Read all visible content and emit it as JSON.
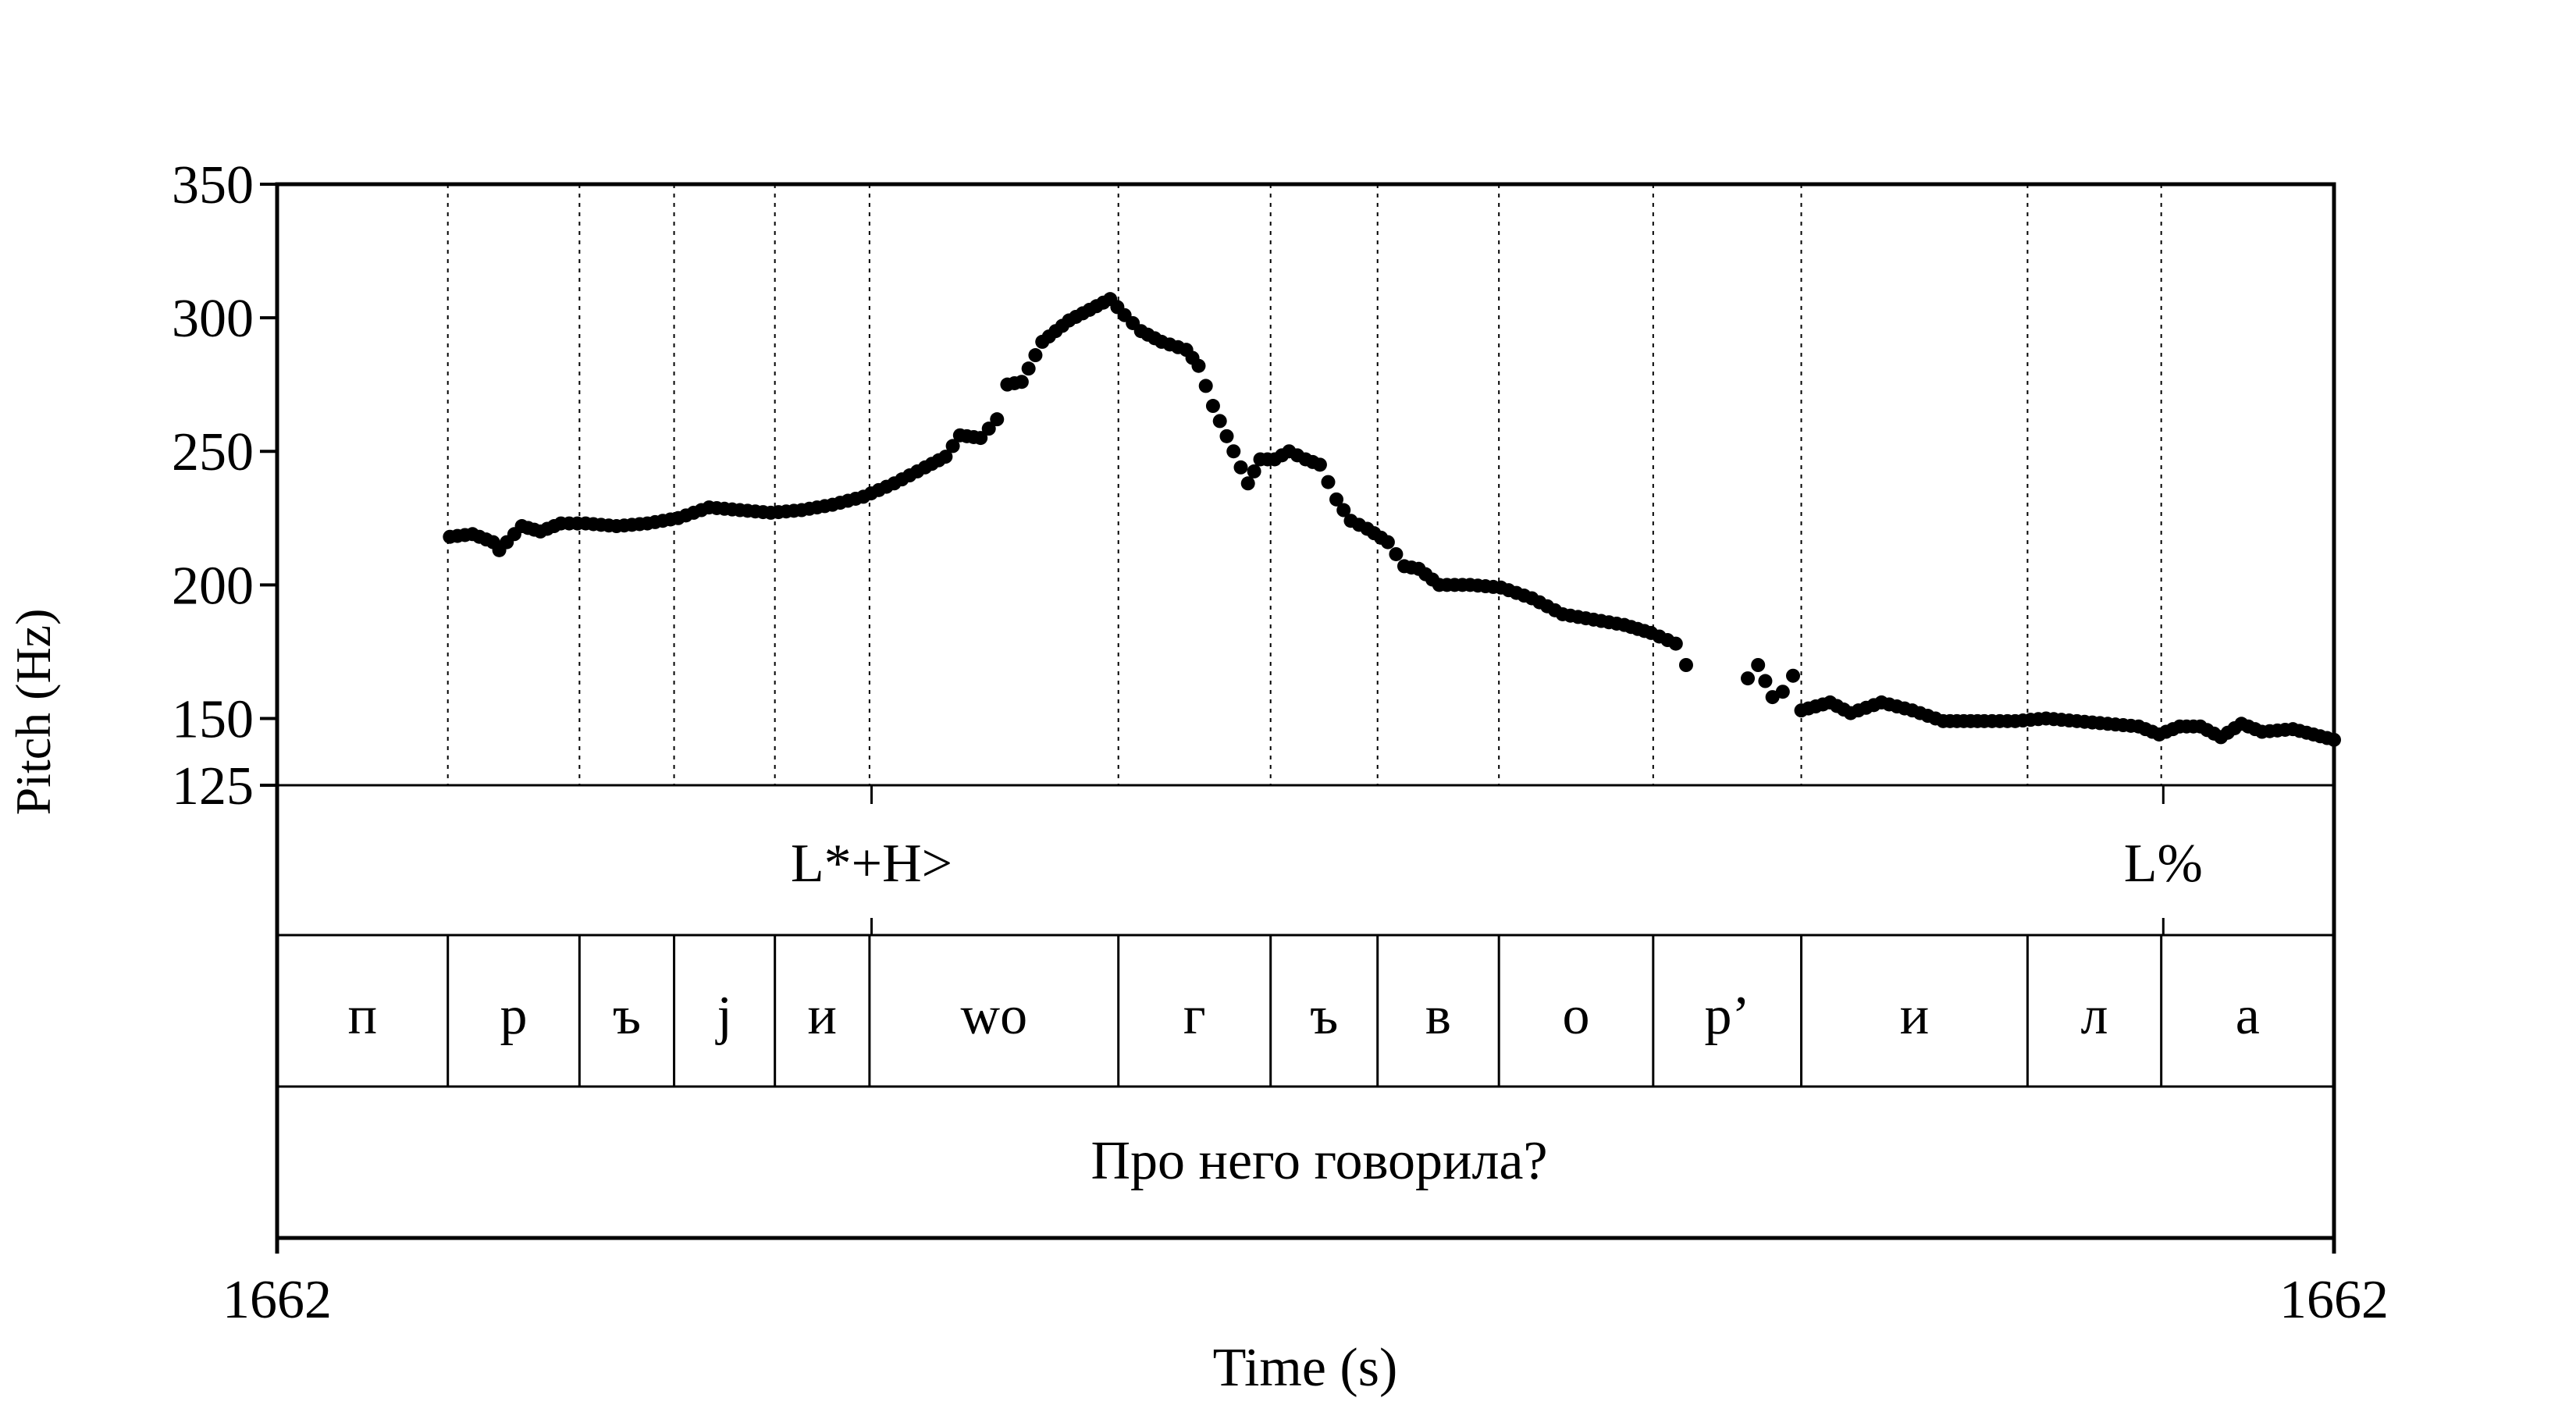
{
  "chart_data": {
    "type": "scatter",
    "title": "",
    "ylabel": "Pitch (Hz)",
    "xlabel": "Time (s)",
    "ylim": [
      125,
      350
    ],
    "y_ticks": [
      350,
      300,
      250,
      200,
      150,
      125
    ],
    "x_ticks": {
      "start": "1662",
      "end": "1662"
    },
    "grid": "vertical dotted lines at segment boundaries",
    "tiers": {
      "tones": [
        {
          "label": "L*+H>",
          "x": 0.289
        },
        {
          "label": "L%",
          "x": 0.917
        }
      ],
      "segments": [
        {
          "label": "п",
          "start": 0.0,
          "end": 0.083
        },
        {
          "label": "р",
          "start": 0.083,
          "end": 0.147
        },
        {
          "label": "ъ",
          "start": 0.147,
          "end": 0.193
        },
        {
          "label": "j",
          "start": 0.193,
          "end": 0.242
        },
        {
          "label": "и",
          "start": 0.242,
          "end": 0.288
        },
        {
          "label": "wo",
          "start": 0.288,
          "end": 0.409
        },
        {
          "label": "г",
          "start": 0.409,
          "end": 0.483
        },
        {
          "label": "ъ",
          "start": 0.483,
          "end": 0.535
        },
        {
          "label": "в",
          "start": 0.535,
          "end": 0.594
        },
        {
          "label": "о",
          "start": 0.594,
          "end": 0.669
        },
        {
          "label": "р’",
          "start": 0.669,
          "end": 0.741
        },
        {
          "label": "и",
          "start": 0.741,
          "end": 0.851
        },
        {
          "label": "л",
          "start": 0.851,
          "end": 0.916
        },
        {
          "label": "а",
          "start": 0.916,
          "end": 1.0
        }
      ],
      "sentence": "Про него говорила?"
    },
    "series": [
      {
        "values": [
          [
            0.084,
            218
          ],
          [
            0.095,
            219
          ],
          [
            0.105,
            216
          ],
          [
            0.108,
            213
          ],
          [
            0.119,
            222
          ],
          [
            0.128,
            220
          ],
          [
            0.138,
            223
          ],
          [
            0.15,
            223
          ],
          [
            0.165,
            222
          ],
          [
            0.18,
            223
          ],
          [
            0.195,
            225
          ],
          [
            0.21,
            229
          ],
          [
            0.225,
            228
          ],
          [
            0.24,
            227
          ],
          [
            0.255,
            228
          ],
          [
            0.27,
            230
          ],
          [
            0.285,
            233
          ],
          [
            0.3,
            238
          ],
          [
            0.315,
            244
          ],
          [
            0.325,
            248
          ],
          [
            0.332,
            256
          ],
          [
            0.342,
            255
          ],
          [
            0.35,
            262
          ],
          [
            0.355,
            275
          ],
          [
            0.362,
            276
          ],
          [
            0.372,
            291
          ],
          [
            0.385,
            299
          ],
          [
            0.395,
            303
          ],
          [
            0.405,
            307
          ],
          [
            0.412,
            301
          ],
          [
            0.42,
            295
          ],
          [
            0.43,
            291
          ],
          [
            0.442,
            288
          ],
          [
            0.448,
            282
          ],
          [
            0.455,
            267
          ],
          [
            0.465,
            250
          ],
          [
            0.472,
            238
          ],
          [
            0.478,
            247
          ],
          [
            0.485,
            247
          ],
          [
            0.492,
            250
          ],
          [
            0.5,
            247
          ],
          [
            0.507,
            245
          ],
          [
            0.515,
            232
          ],
          [
            0.522,
            224
          ],
          [
            0.53,
            221
          ],
          [
            0.54,
            216
          ],
          [
            0.548,
            207
          ],
          [
            0.555,
            206
          ],
          [
            0.565,
            200
          ],
          [
            0.58,
            200
          ],
          [
            0.595,
            199
          ],
          [
            0.61,
            195
          ],
          [
            0.625,
            189
          ],
          [
            0.64,
            187
          ],
          [
            0.655,
            185
          ],
          [
            0.668,
            182
          ],
          [
            0.68,
            178
          ],
          [
            0.685,
            170
          ],
          [
            0.715,
            165
          ],
          [
            0.72,
            170
          ],
          [
            0.727,
            158
          ],
          [
            0.732,
            160
          ],
          [
            0.737,
            166
          ],
          [
            0.741,
            153
          ],
          [
            0.755,
            156
          ],
          [
            0.765,
            152
          ],
          [
            0.78,
            156
          ],
          [
            0.795,
            153
          ],
          [
            0.81,
            149
          ],
          [
            0.83,
            149
          ],
          [
            0.845,
            149
          ],
          [
            0.86,
            150
          ],
          [
            0.875,
            149
          ],
          [
            0.89,
            148
          ],
          [
            0.905,
            147
          ],
          [
            0.915,
            144
          ],
          [
            0.925,
            147
          ],
          [
            0.935,
            147
          ],
          [
            0.945,
            143
          ],
          [
            0.955,
            148
          ],
          [
            0.965,
            145
          ],
          [
            0.98,
            146
          ],
          [
            0.99,
            144
          ],
          [
            1.0,
            142
          ]
        ]
      }
    ]
  }
}
